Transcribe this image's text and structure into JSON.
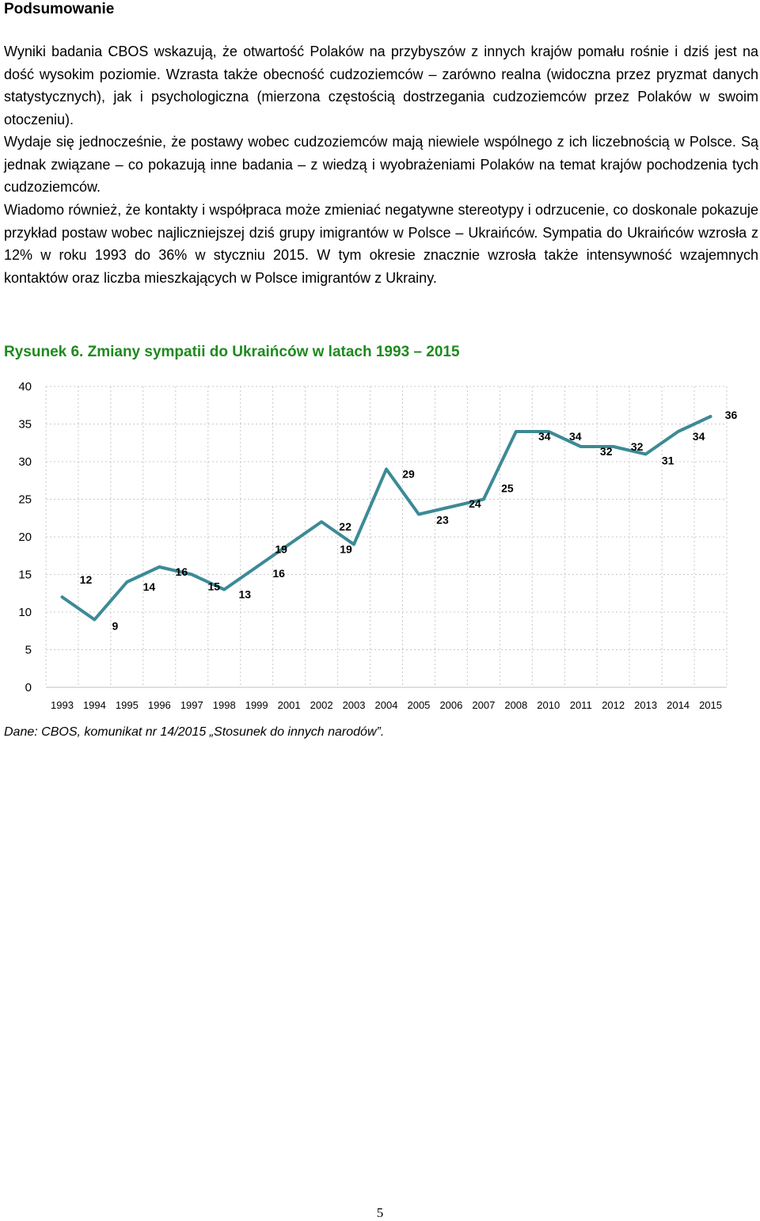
{
  "heading": "Podsumowanie",
  "paragraphs": [
    "Wyniki badania CBOS wskazują, że otwartość Polaków na przybyszów z innych krajów pomału rośnie i dziś jest na dość wysokim poziomie. Wzrasta także obecność cudzoziemców – zarówno realna (widoczna przez pryzmat danych statystycznych), jak i psychologiczna (mierzona częstością dostrzegania cudzoziemców przez Polaków w swoim otoczeniu).",
    "Wydaje się jednocześnie, że postawy wobec cudzoziemców mają niewiele wspólnego z ich liczebnością w Polsce. Są jednak związane – co pokazują inne badania – z wiedzą i wyobrażeniami Polaków na temat krajów pochodzenia tych cudzoziemców.",
    "Wiadomo również, że kontakty i współpraca może zmieniać negatywne stereotypy i odrzucenie, co doskonale pokazuje przykład postaw wobec najliczniejszej dziś grupy imigrantów w Polsce – Ukraińców. Sympatia do Ukraińców wzrosła z 12% w roku 1993 do 36% w styczniu 2015. W tym okresie znacznie wzrosła także intensywność wzajemnych kontaktów oraz liczba mieszkających w Polsce imigrantów z Ukrainy."
  ],
  "figure_title": "Rysunek 6. Zmiany sympatii do Ukraińców w latach 1993 – 2015",
  "source": "Dane: CBOS, komunikat nr 14/2015 „Stosunek do innych narodów”.",
  "page_number": "5",
  "chart_data": {
    "type": "line",
    "title": "",
    "xlabel": "",
    "ylabel": "",
    "ylim": [
      0,
      40
    ],
    "y_ticks": [
      0,
      5,
      10,
      15,
      20,
      25,
      30,
      35,
      40
    ],
    "grid": true,
    "line_color": "#3c8a96",
    "categories": [
      "1993",
      "1994",
      "1995",
      "1996",
      "1997",
      "1998",
      "1999",
      "2001",
      "2002",
      "2003",
      "2004",
      "2005",
      "2006",
      "2007",
      "2008",
      "2010",
      "2011",
      "2012",
      "2013",
      "2014",
      "2015"
    ],
    "values": [
      12,
      9,
      14,
      16,
      15,
      13,
      16,
      19,
      22,
      19,
      29,
      23,
      24,
      25,
      34,
      34,
      32,
      32,
      31,
      34,
      36
    ],
    "data_labels": [
      "12",
      "9",
      "14",
      "16",
      "15",
      "13",
      "16",
      "19",
      "22",
      "19",
      "29",
      "23",
      "24",
      "25",
      "34",
      "34",
      "32",
      "32",
      "31",
      "34",
      "36"
    ]
  }
}
